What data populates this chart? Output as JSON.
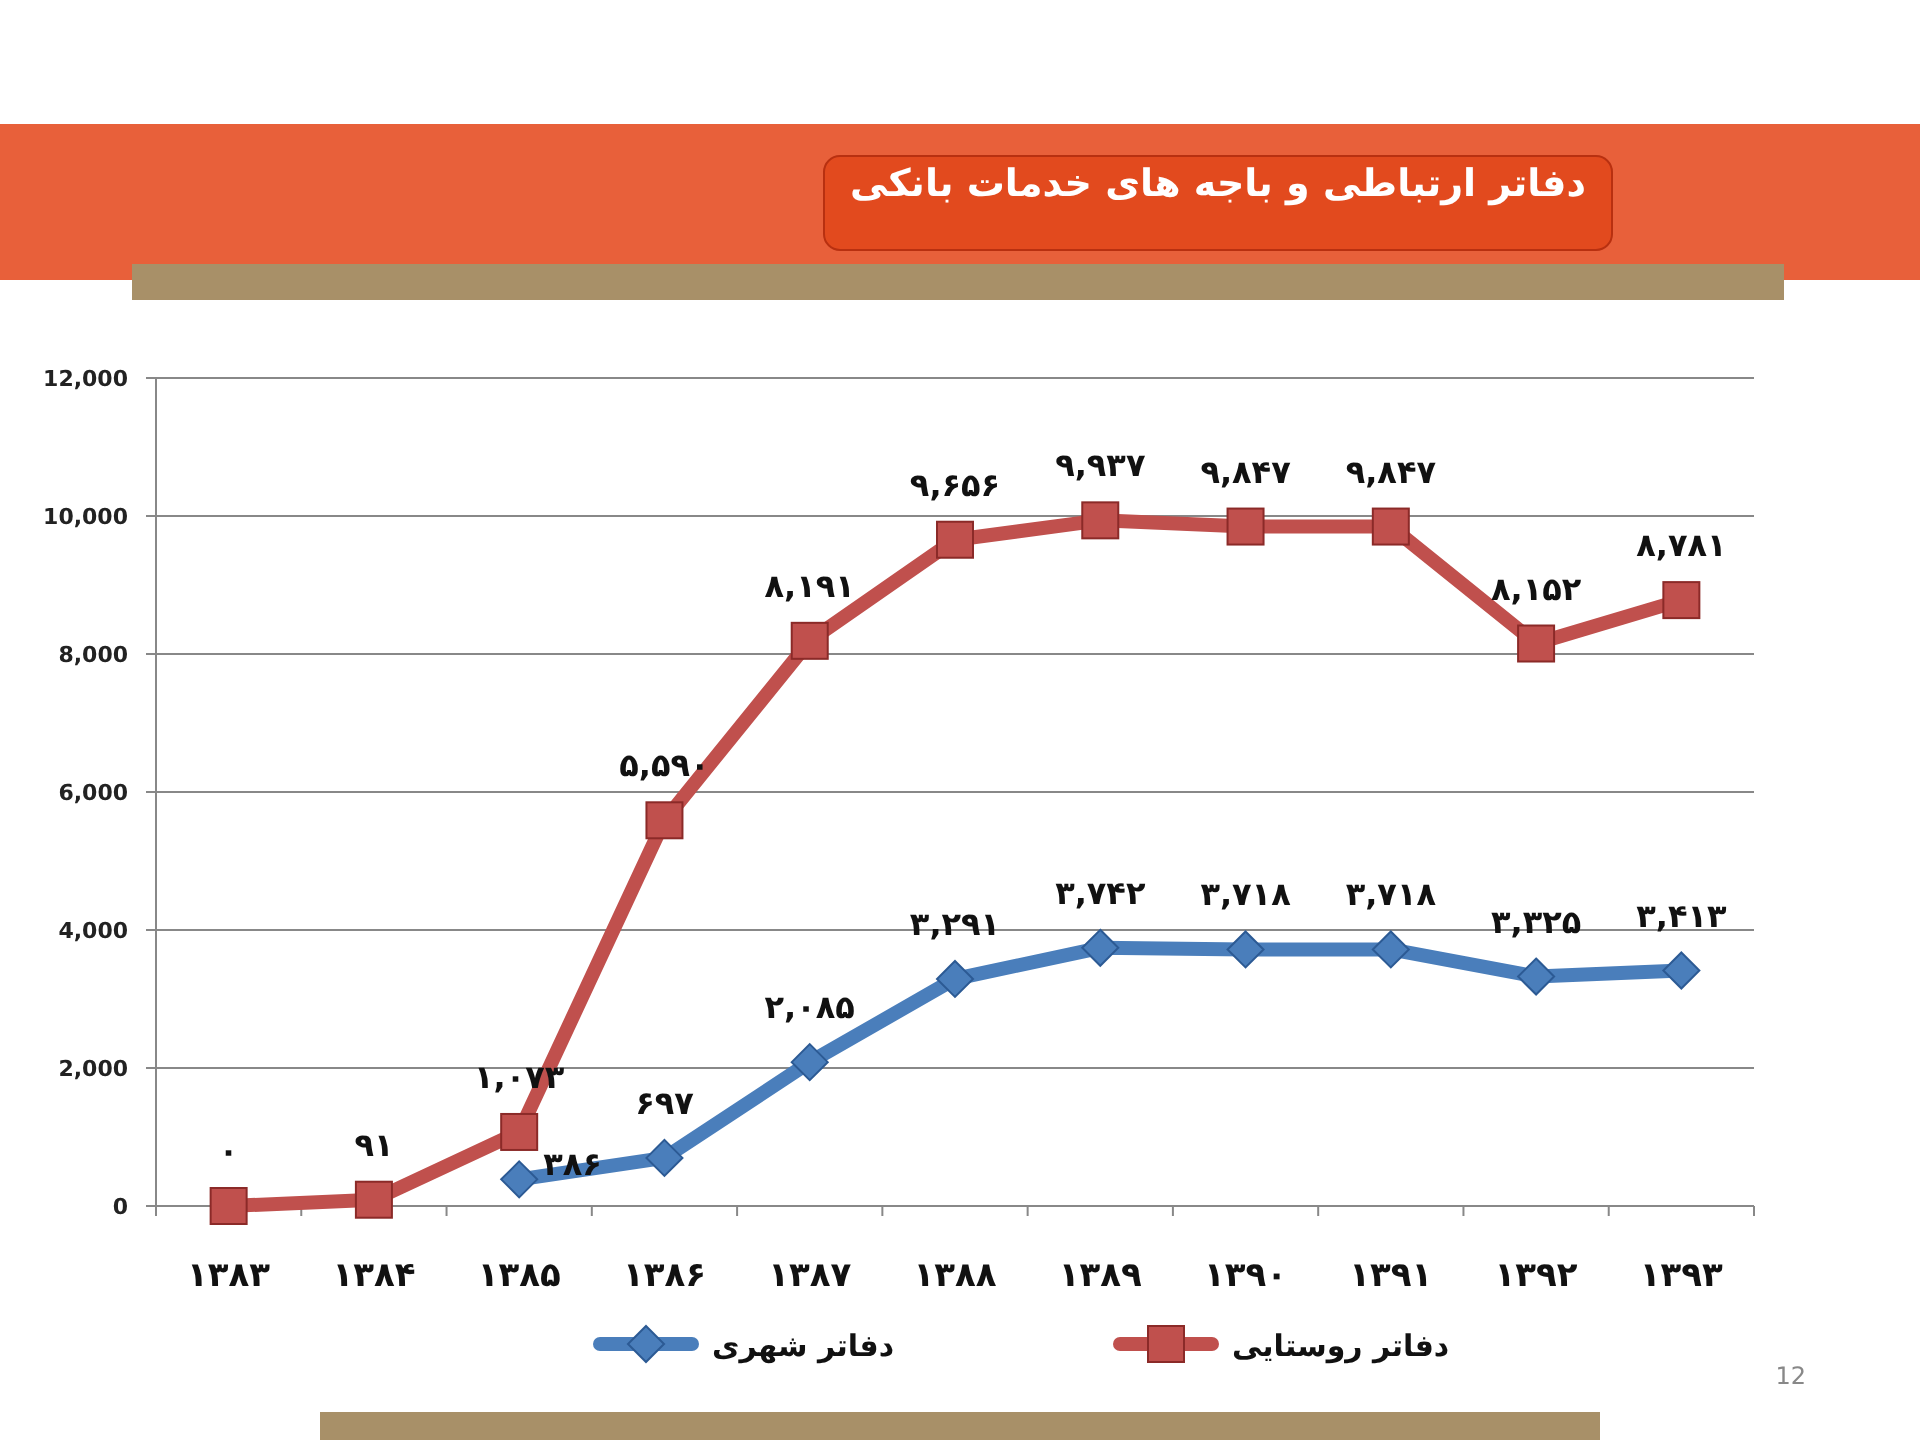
{
  "chart_data": {
    "type": "line",
    "title": "دفاتر ارتباطی و باجه های خدمات بانکی",
    "categories": [
      "۱۳۸۳",
      "۱۳۸۴",
      "۱۳۸۵",
      "۱۳۸۶",
      "۱۳۸۷",
      "۱۳۸۸",
      "۱۳۸۹",
      "۱۳۹۰",
      "۱۳۹۱",
      "۱۳۹۲",
      "۱۳۹۳"
    ],
    "series": [
      {
        "name": "دفاتر شهری",
        "color": "#4a7ebb",
        "marker": "diamond",
        "values": [
          null,
          null,
          386,
          697,
          2085,
          3291,
          3742,
          3718,
          3718,
          3325,
          3413
        ],
        "value_labels": [
          null,
          null,
          "۳۸۶",
          "۶۹۷",
          "۲,۰۸۵",
          "۳,۲۹۱",
          "۳,۷۴۲",
          "۳,۷۱۸",
          "۳,۷۱۸",
          "۳,۳۲۵",
          "۳,۴۱۳"
        ]
      },
      {
        "name": "دفاتر روستایی",
        "color": "#c0504d",
        "marker": "square",
        "values": [
          0,
          91,
          1073,
          5590,
          8191,
          9656,
          9937,
          9847,
          9847,
          8152,
          8781
        ],
        "value_labels": [
          "۰",
          "۹۱",
          "۱,۰۷۳",
          "۵,۵۹۰",
          "۸,۱۹۱",
          "۹,۶۵۶",
          "۹,۹۳۷",
          "۹,۸۴۷",
          "۹,۸۴۷",
          "۸,۱۵۲",
          "۸,۷۸۱"
        ]
      }
    ],
    "ylim": [
      0,
      12000
    ],
    "yticks": [
      0,
      {
        "value": 2000,
        "label": "2,000"
      },
      {
        "value": 4000,
        "label": "4,000"
      },
      {
        "value": 6000,
        "label": "6,000"
      },
      {
        "value": 8000,
        "label": "8,000"
      },
      {
        "value": 10000,
        "label": "10,000"
      },
      {
        "value": 12000,
        "label": "12,000"
      }
    ],
    "grid": "y",
    "legend": "bottom",
    "annotations": [
      "12"
    ]
  }
}
